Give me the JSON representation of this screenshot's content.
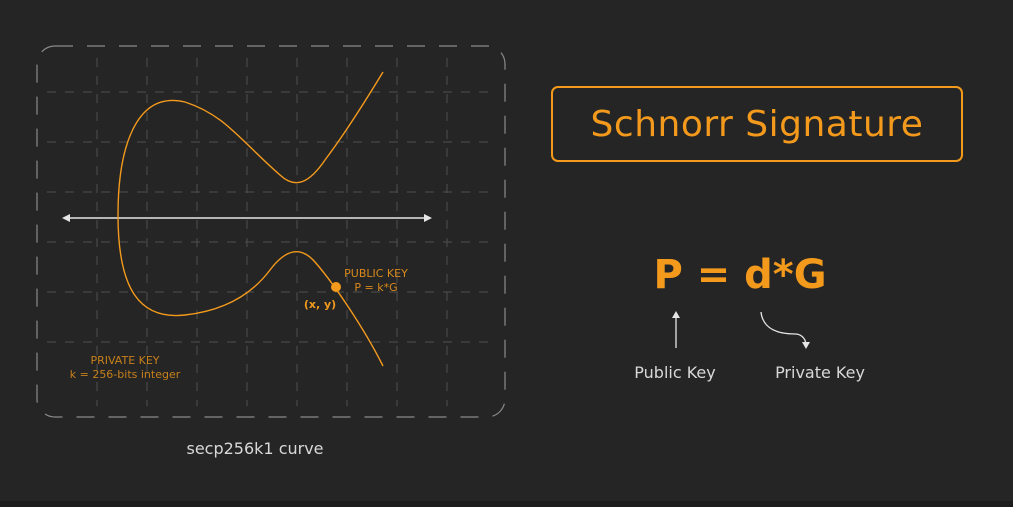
{
  "title": "Schnorr Signature",
  "formula": "P = d*G",
  "formula_labels": {
    "public": "Public Key",
    "private": "Private Key"
  },
  "curve": {
    "caption": "secp256k1 curve",
    "point_label": "(x, y)",
    "public_key": {
      "title": "PUBLIC KEY",
      "formula": "P = k*G"
    },
    "private_key": {
      "title": "PRIVATE KEY",
      "description": "k = 256-bits integer"
    }
  },
  "colors": {
    "background": "#252525",
    "accent": "#f39a1d",
    "text": "#d8d8d8",
    "grid": "#555555"
  }
}
